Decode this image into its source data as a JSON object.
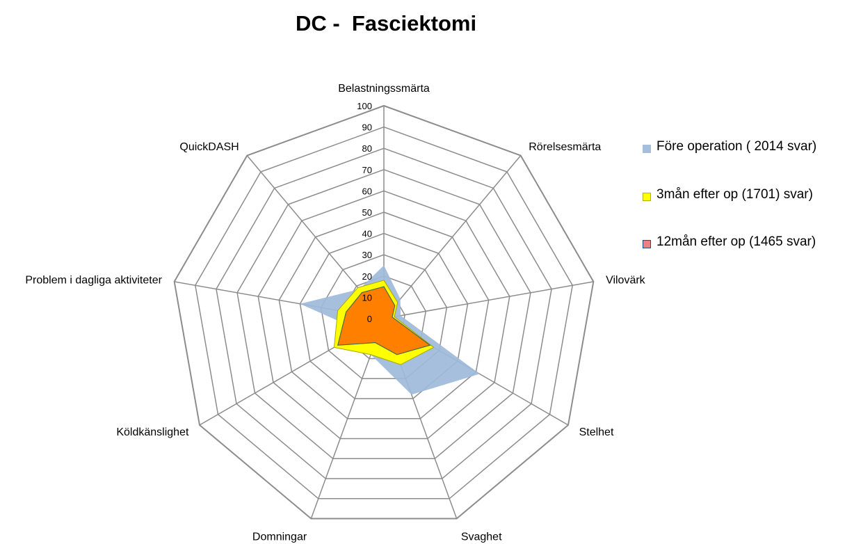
{
  "chart_data": {
    "type": "radar",
    "title": "DC -  Fasciektomi",
    "categories": [
      "Belastningssmärta",
      "Rörelsesmärta",
      "Vilovärk",
      "Stelhet",
      "Svaghet",
      "Domningar",
      "Köldkänslighet",
      "Problem i dagliga aktiviteter",
      "QuickDASH"
    ],
    "rlim": [
      0,
      100
    ],
    "ticks": [
      "0",
      "10",
      "20",
      "30",
      "40",
      "50",
      "60",
      "70",
      "80",
      "90",
      "100"
    ],
    "grid": true,
    "legend_position": "right",
    "series": [
      {
        "name": "Före operation ( 2014 svar)",
        "values": [
          25,
          12,
          8,
          52,
          38,
          18,
          12,
          40,
          18
        ],
        "color": "#9dbad9"
      },
      {
        "name": "3mån efter op (1701) svar)",
        "values": [
          18,
          10,
          5,
          27,
          23,
          18,
          27,
          22,
          19
        ],
        "color": "#ffff00"
      },
      {
        "name": "12mån efter op (1465 svar)",
        "values": [
          15,
          8,
          4,
          25,
          18,
          12,
          25,
          18,
          16
        ],
        "color": "#f08080"
      }
    ],
    "inner_area_color": "#ff7f00"
  }
}
